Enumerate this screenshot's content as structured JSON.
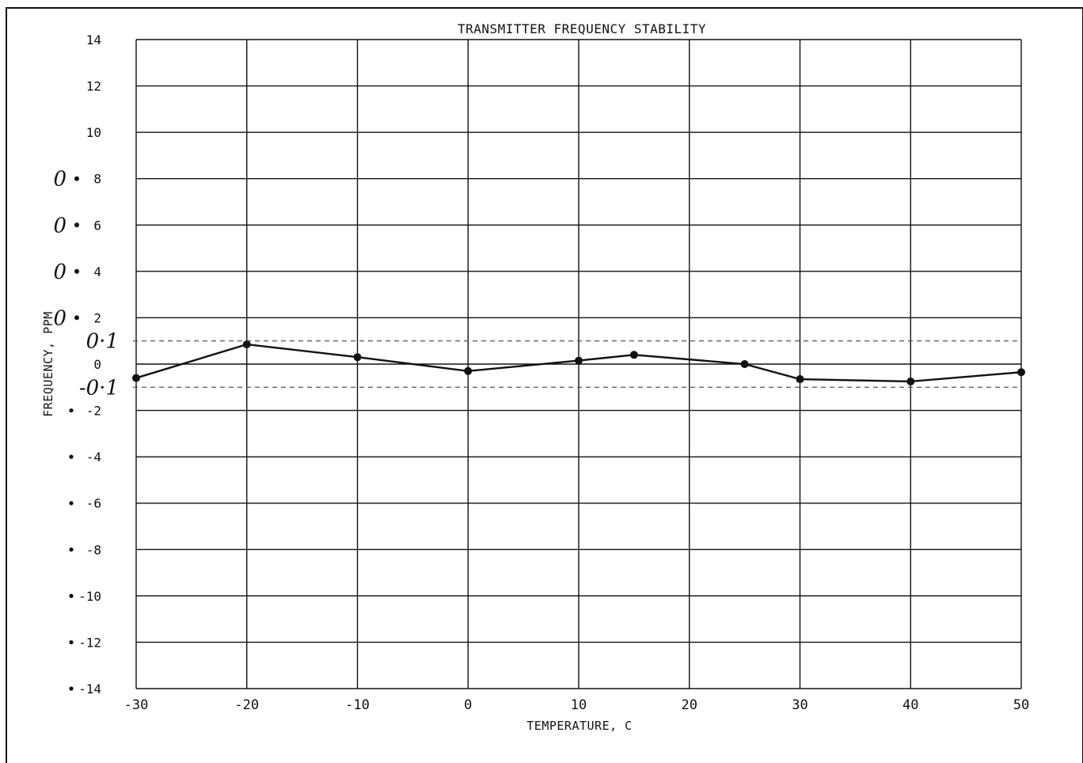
{
  "chart_data": {
    "type": "line",
    "title": "TRANSMITTER FREQUENCY STABILITY",
    "xlabel": "TEMPERATURE, C",
    "ylabel": "FREQUENCY,  PPM",
    "xlim": [
      -30,
      50
    ],
    "ylim": [
      -14,
      14
    ],
    "x_ticks": [
      -30,
      -20,
      -10,
      0,
      10,
      20,
      30,
      40,
      50
    ],
    "x_tick_labels": [
      "-30",
      "-20",
      "-10",
      "0",
      "10",
      "20",
      "30",
      "40",
      "50"
    ],
    "y_ticks": [
      14,
      12,
      10,
      8,
      6,
      4,
      2,
      0,
      -2,
      -4,
      -6,
      -8,
      -10,
      -12,
      -14
    ],
    "y_tick_labels": [
      "14",
      "12",
      "10",
      "8",
      "6",
      "4",
      "2",
      "0",
      "-2",
      "-4",
      "-6",
      "-8",
      "-10",
      "-12",
      "-14"
    ],
    "grid": true,
    "series": [
      {
        "x": [
          -30,
          -20,
          -10,
          0,
          10,
          15,
          25,
          30,
          40,
          50
        ],
        "y": [
          -0.6,
          0.85,
          0.3,
          -0.3,
          0.15,
          0.4,
          0.0,
          -0.65,
          -0.75,
          -0.35
        ]
      }
    ],
    "limit_lines": [
      {
        "y": 1.0,
        "style": "dashed"
      },
      {
        "y": -1.0,
        "style": "dashed"
      }
    ],
    "handwritten_annotations": [
      {
        "text": "0",
        "y": 8
      },
      {
        "text": "0",
        "y": 6
      },
      {
        "text": "0",
        "y": 4
      },
      {
        "text": "0",
        "y": 2
      },
      {
        "text": "0·1",
        "y": 1
      },
      {
        "text": "-0·1",
        "y": -1
      }
    ]
  }
}
